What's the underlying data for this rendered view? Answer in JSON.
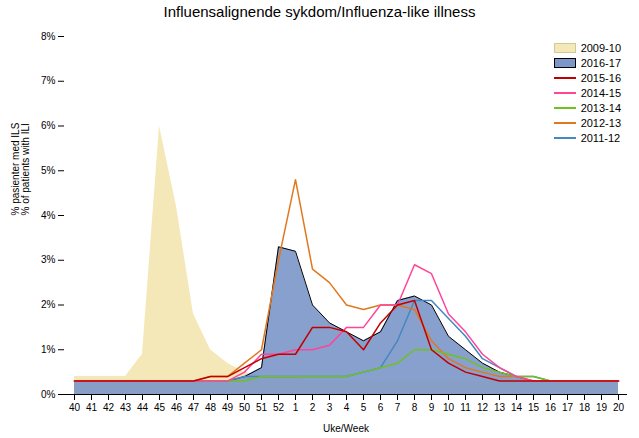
{
  "chart_data": {
    "type": "line",
    "title": "Influensalignende sykdom/Influenza-like illness",
    "xlabel": "Uke/Week",
    "ylabel": "% pasienter med ILS\n% of patients with ILI",
    "categories": [
      40,
      41,
      42,
      43,
      44,
      45,
      46,
      47,
      48,
      49,
      50,
      51,
      52,
      1,
      2,
      3,
      4,
      5,
      6,
      7,
      8,
      9,
      10,
      11,
      12,
      13,
      14,
      15,
      16,
      17,
      18,
      19,
      20
    ],
    "ylim": [
      0,
      0.08
    ],
    "yticks": [
      {
        "value": 0.0,
        "label": "0%"
      },
      {
        "value": 0.01,
        "label": "1%"
      },
      {
        "value": 0.02,
        "label": "2%"
      },
      {
        "value": 0.03,
        "label": "3%"
      },
      {
        "value": 0.04,
        "label": "4%"
      },
      {
        "value": 0.05,
        "label": "5%"
      },
      {
        "value": 0.06,
        "label": "6%"
      },
      {
        "value": 0.07,
        "label": "7%"
      },
      {
        "value": 0.08,
        "label": "8%"
      }
    ],
    "grid": false,
    "legend": "upper right",
    "series": [
      {
        "name": "2009-10",
        "type": "area",
        "color": "#f5e8b8",
        "values": [
          0.004,
          0.004,
          0.004,
          0.004,
          0.009,
          0.06,
          0.042,
          0.018,
          0.01,
          0.007,
          0.005,
          0.004,
          0.004,
          0.004,
          0.003,
          0.003,
          0.003,
          0.003,
          0.003,
          0.003,
          0.003,
          0.003,
          0.003,
          0.003,
          0.003,
          0.003,
          0.003,
          0.003,
          0.003,
          0.003,
          0.003,
          0.003,
          0.003
        ]
      },
      {
        "name": "2016-17",
        "type": "area",
        "color": "#7b96c8",
        "values": [
          0.003,
          0.003,
          0.003,
          0.003,
          0.003,
          0.003,
          0.003,
          0.003,
          0.003,
          0.003,
          0.004,
          0.006,
          0.033,
          0.032,
          0.02,
          0.016,
          0.014,
          0.012,
          0.014,
          0.021,
          0.022,
          0.02,
          0.013,
          0.01,
          0.007,
          0.005,
          0.004,
          0.003,
          0.003,
          0.003,
          0.003,
          0.003,
          0.003
        ]
      },
      {
        "name": "2015-16",
        "type": "line",
        "color": "#c00000",
        "values": [
          0.003,
          0.003,
          0.003,
          0.003,
          0.003,
          0.003,
          0.003,
          0.003,
          0.004,
          0.004,
          0.006,
          0.008,
          0.009,
          0.009,
          0.015,
          0.015,
          0.014,
          0.01,
          0.016,
          0.02,
          0.021,
          0.01,
          0.007,
          0.005,
          0.004,
          0.003,
          0.003,
          0.003,
          0.003,
          0.003,
          0.003,
          0.003,
          0.003
        ]
      },
      {
        "name": "2014-15",
        "type": "line",
        "color": "#ff4499",
        "values": [
          0.003,
          0.003,
          0.003,
          0.003,
          0.003,
          0.003,
          0.003,
          0.003,
          0.003,
          0.003,
          0.005,
          0.009,
          0.009,
          0.01,
          0.01,
          0.011,
          0.015,
          0.015,
          0.02,
          0.02,
          0.029,
          0.027,
          0.018,
          0.014,
          0.009,
          0.006,
          0.004,
          0.003,
          0.003,
          0.003,
          0.003,
          0.003,
          0.003
        ]
      },
      {
        "name": "2013-14",
        "type": "line",
        "color": "#70c020",
        "values": [
          0.003,
          0.003,
          0.003,
          0.003,
          0.003,
          0.003,
          0.003,
          0.003,
          0.003,
          0.003,
          0.003,
          0.004,
          0.004,
          0.004,
          0.004,
          0.004,
          0.004,
          0.005,
          0.006,
          0.007,
          0.01,
          0.01,
          0.009,
          0.008,
          0.006,
          0.005,
          0.004,
          0.004,
          0.003,
          0.003,
          0.003,
          0.003,
          0.003
        ]
      },
      {
        "name": "2012-13",
        "type": "line",
        "color": "#e07820",
        "values": [
          0.003,
          0.003,
          0.003,
          0.003,
          0.003,
          0.003,
          0.003,
          0.003,
          0.004,
          0.004,
          0.007,
          0.01,
          0.03,
          0.048,
          0.028,
          0.025,
          0.02,
          0.019,
          0.02,
          0.02,
          0.019,
          0.012,
          0.008,
          0.006,
          0.005,
          0.004,
          0.004,
          0.003,
          0.003,
          0.003,
          0.003,
          0.003,
          0.003
        ]
      },
      {
        "name": "2011-12",
        "type": "line",
        "color": "#4488c0",
        "values": [
          0.003,
          0.003,
          0.003,
          0.003,
          0.003,
          0.003,
          0.003,
          0.003,
          0.003,
          0.003,
          0.004,
          0.004,
          0.004,
          0.004,
          0.004,
          0.004,
          0.004,
          0.005,
          0.006,
          0.012,
          0.021,
          0.021,
          0.017,
          0.013,
          0.008,
          0.006,
          0.004,
          0.004,
          0.003,
          0.003,
          0.003,
          0.003,
          0.003
        ]
      }
    ]
  }
}
